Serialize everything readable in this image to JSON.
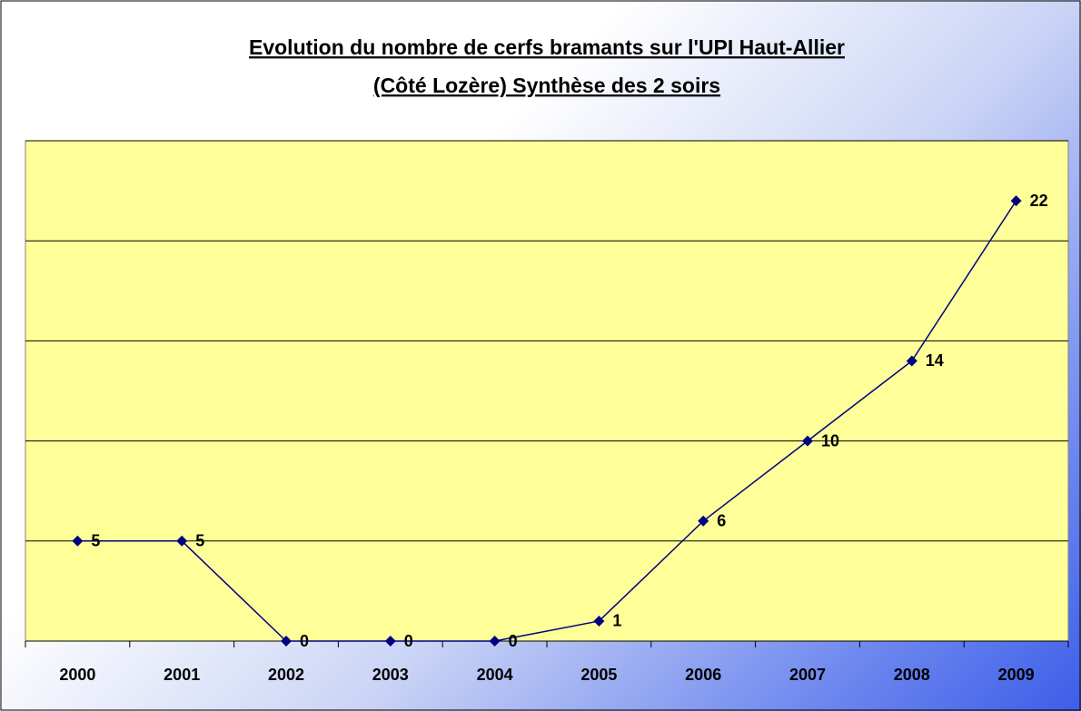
{
  "chart_data": {
    "type": "line",
    "title": [
      "Evolution du nombre de cerfs bramants sur l'UPI Haut-Allier",
      "(Côté Lozère) Synthèse des 2 soirs"
    ],
    "categories": [
      "2000",
      "2001",
      "2002",
      "2003",
      "2004",
      "2005",
      "2006",
      "2007",
      "2008",
      "2009"
    ],
    "values": [
      5,
      5,
      0,
      0,
      0,
      1,
      6,
      10,
      14,
      22
    ],
    "color": "#000080",
    "plot_background": "#ffff99",
    "ylim": [
      0,
      25
    ],
    "yticks": [
      0,
      5,
      10,
      15,
      20,
      25
    ],
    "grid": true
  }
}
